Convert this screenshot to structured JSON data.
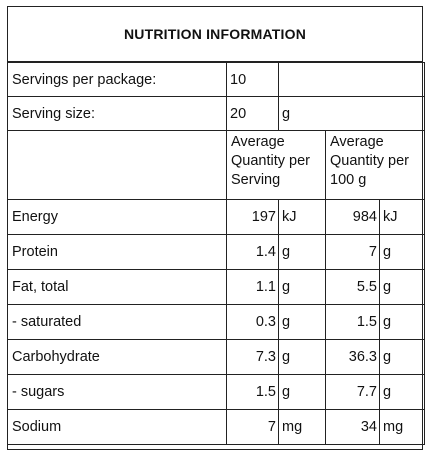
{
  "title": "NUTRITION INFORMATION",
  "servings_per_package": {
    "label": "Servings per package:",
    "value": "10"
  },
  "serving_size": {
    "label": "Serving size:",
    "value": "20",
    "unit": "g"
  },
  "column_headers": {
    "per_serving": "Average Quantity per Serving",
    "per_100g": "Average Quantity per 100 g"
  },
  "rows": [
    {
      "name": "Energy",
      "serving": "197",
      "serving_unit": "kJ",
      "per100": "984",
      "per100_unit": "kJ"
    },
    {
      "name": "Protein",
      "serving": "1.4",
      "serving_unit": "g",
      "per100": "7",
      "per100_unit": "g"
    },
    {
      "name": "Fat, total",
      "serving": "1.1",
      "serving_unit": "g",
      "per100": "5.5",
      "per100_unit": "g"
    },
    {
      "name": "- saturated",
      "serving": "0.3",
      "serving_unit": "g",
      "per100": "1.5",
      "per100_unit": "g"
    },
    {
      "name": "Carbohydrate",
      "serving": "7.3",
      "serving_unit": "g",
      "per100": "36.3",
      "per100_unit": "g"
    },
    {
      "name": "- sugars",
      "serving": "1.5",
      "serving_unit": "g",
      "per100": "7.7",
      "per100_unit": "g"
    },
    {
      "name": "Sodium",
      "serving": "7",
      "serving_unit": "mg",
      "per100": "34",
      "per100_unit": "mg"
    }
  ]
}
